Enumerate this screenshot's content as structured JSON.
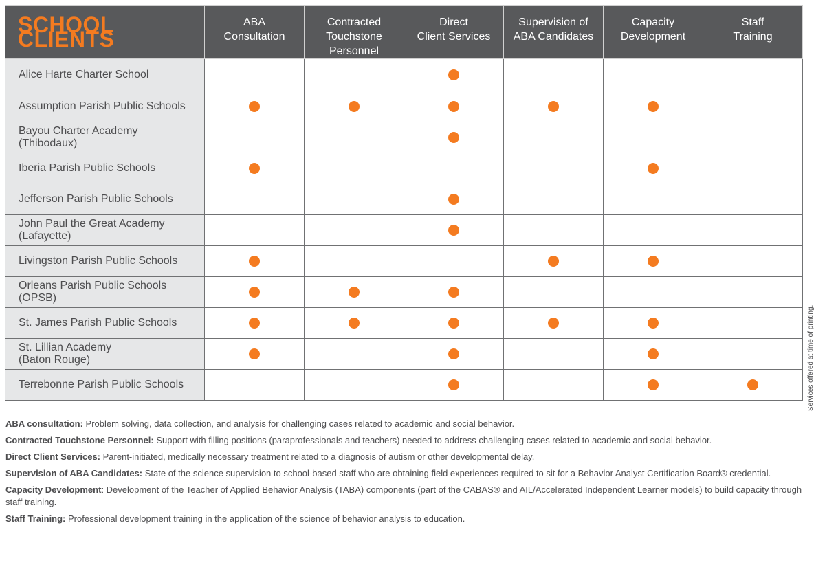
{
  "title": "SCHOOL CLIENTS",
  "accent_color": "#f47b20",
  "header_color": "#58595b",
  "services": [
    [
      "ABA",
      "Consultation"
    ],
    [
      "Contracted",
      "Touchstone",
      "Personnel"
    ],
    [
      "Direct",
      "Client Services"
    ],
    [
      "Supervision of",
      "ABA Candidates"
    ],
    [
      "Capacity",
      "Development"
    ],
    [
      "Staff",
      "Training"
    ]
  ],
  "clients": [
    {
      "name": [
        "Alice Harte Charter School"
      ],
      "services": [
        0,
        0,
        1,
        0,
        0,
        0
      ]
    },
    {
      "name": [
        "Assumption Parish Public Schools"
      ],
      "services": [
        1,
        1,
        1,
        1,
        1,
        0
      ]
    },
    {
      "name": [
        "Bayou Charter Academy",
        "(Thibodaux)"
      ],
      "services": [
        0,
        0,
        1,
        0,
        0,
        0
      ]
    },
    {
      "name": [
        "Iberia Parish Public Schools"
      ],
      "services": [
        1,
        0,
        0,
        0,
        1,
        0
      ]
    },
    {
      "name": [
        "Jefferson Parish Public Schools"
      ],
      "services": [
        0,
        0,
        1,
        0,
        0,
        0
      ]
    },
    {
      "name": [
        "John Paul the Great Academy",
        "(Lafayette)"
      ],
      "services": [
        0,
        0,
        1,
        0,
        0,
        0
      ]
    },
    {
      "name": [
        "Livingston Parish Public Schools"
      ],
      "services": [
        1,
        0,
        0,
        1,
        1,
        0
      ]
    },
    {
      "name": [
        "Orleans Parish Public Schools",
        "(OPSB)"
      ],
      "services": [
        1,
        1,
        1,
        0,
        0,
        0
      ]
    },
    {
      "name": [
        "St. James Parish Public Schools"
      ],
      "services": [
        1,
        1,
        1,
        1,
        1,
        0
      ]
    },
    {
      "name": [
        "St. Lillian Academy",
        "(Baton Rouge)"
      ],
      "services": [
        1,
        0,
        1,
        0,
        1,
        0
      ]
    },
    {
      "name": [
        "Terrebonne Parish Public Schools"
      ],
      "services": [
        0,
        0,
        1,
        0,
        1,
        1
      ]
    }
  ],
  "side_note": "Services offered at time of printing.",
  "definitions": [
    {
      "term": "ABA consultation:",
      "text": " Problem solving, data collection, and analysis for challenging cases related to academic and social behavior."
    },
    {
      "term": "Contracted Touchstone Personnel:",
      "text": " Support with filling positions (paraprofessionals and teachers) needed to address challenging cases related to academic and social behavior."
    },
    {
      "term": "Direct Client Services:",
      "text": " Parent-initiated, medically necessary treatment related to a diagnosis of autism or other developmental delay."
    },
    {
      "term": "Supervision of ABA Candidates:",
      "text": " State of the science supervision to school-based staff who are obtaining field experiences required to sit for a Behavior Analyst Certification Board® credential."
    },
    {
      "term": "Capacity Development",
      "text": ": Development of the Teacher of Applied Behavior Analysis (TABA) components (part of the CABAS® and AIL/Accelerated Independent Learner models) to build capacity through staff training."
    },
    {
      "term": "Staff Training:",
      "text": " Professional development training in the application of the science of behavior analysis to education."
    }
  ]
}
